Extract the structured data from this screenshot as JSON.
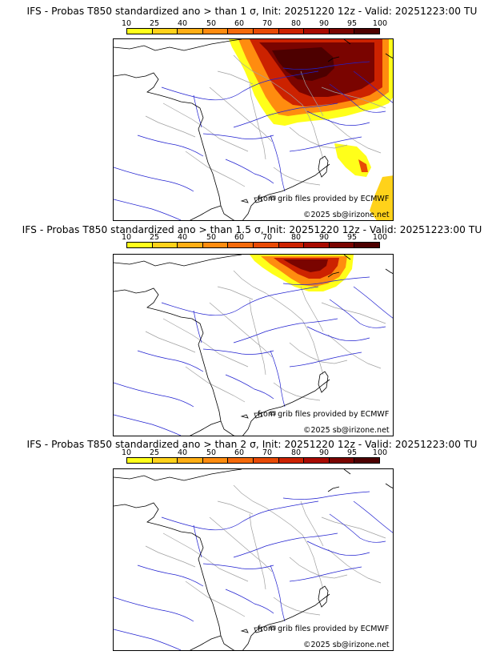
{
  "panels": [
    {
      "title": "IFS - Probas T850  standardized ano > than 1 σ, Init: 20251220 12z - Valid: 20251223:00 TU",
      "threshold": "1 sigma",
      "anomaly_extent": "large"
    },
    {
      "title": "IFS - Probas T850  standardized ano > than 1.5 σ, Init: 20251220 12z - Valid: 20251223:00 TU",
      "threshold": "1.5 sigma",
      "anomaly_extent": "medium"
    },
    {
      "title": "IFS - Probas T850  standardized ano > than 2 σ, Init: 20251220 12z - Valid: 20251223:00 TU",
      "threshold": "2 sigma",
      "anomaly_extent": "none"
    }
  ],
  "colorbar": {
    "ticks": [
      "10",
      "25",
      "40",
      "50",
      "60",
      "70",
      "80",
      "90",
      "95",
      "100"
    ],
    "colors": [
      "#ffff1a",
      "#ffd21a",
      "#ffae14",
      "#ff8c0f",
      "#f56a0a",
      "#e84a05",
      "#cc2200",
      "#a80a00",
      "#7a0400",
      "#4d0000"
    ]
  },
  "credits": {
    "source": "from grib files provided by ECMWF",
    "copyright": "©2025 sb@irizone.net"
  },
  "style": {
    "coast_color": "#000000",
    "river_color": "#2020d0",
    "border_color": "#a0a0a0"
  }
}
